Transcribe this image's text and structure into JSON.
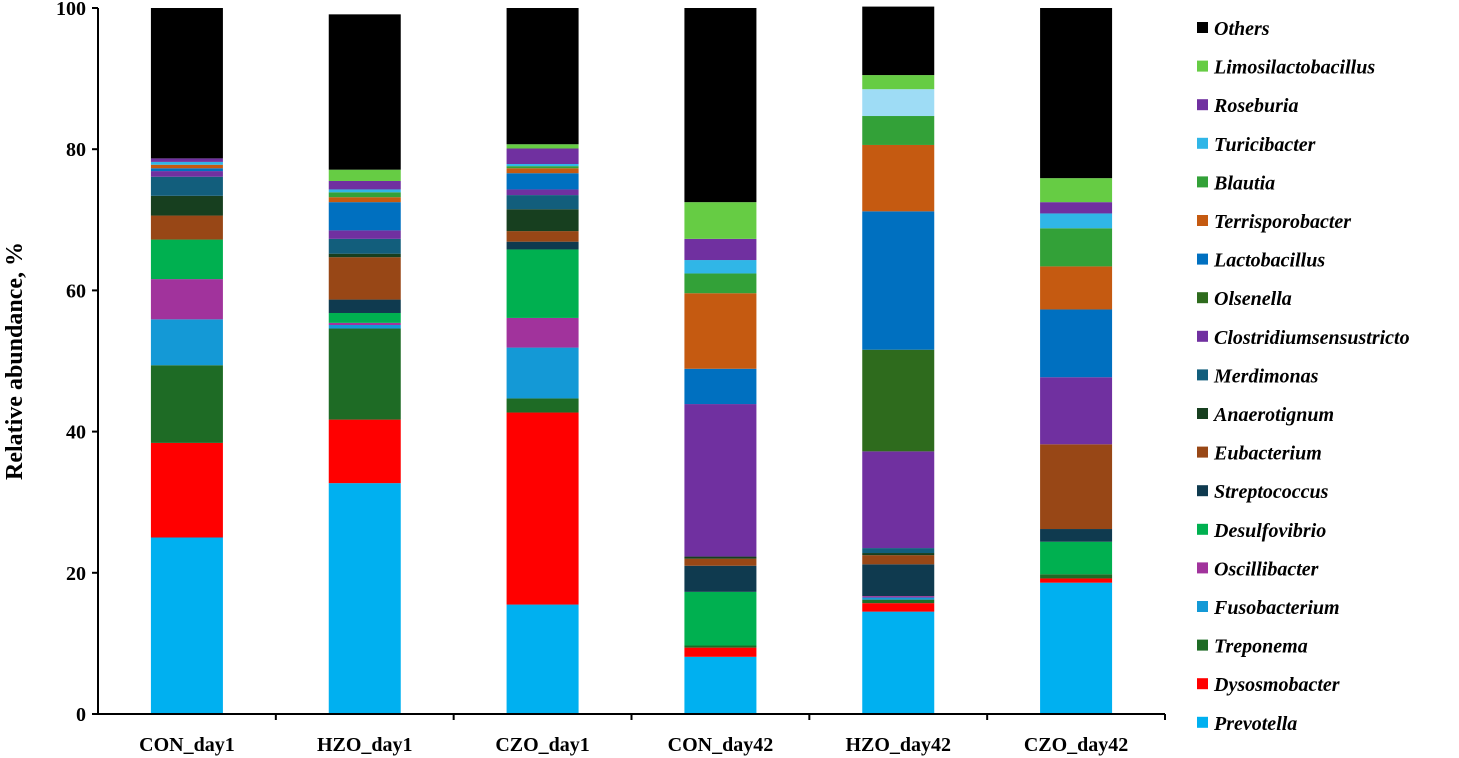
{
  "chart_data": {
    "type": "bar",
    "stacked": true,
    "title": "",
    "xlabel": "",
    "ylabel": "Relative abundance, %",
    "ylim": [
      0,
      100
    ],
    "yticks": [
      "0",
      "20",
      "40",
      "60",
      "80",
      "100"
    ],
    "grid": false,
    "legend_position": "right",
    "categories": [
      "CON_day1",
      "HZO_day1",
      "CZO_day1",
      "CON_day42",
      "HZO_day42",
      "CZO_day42"
    ],
    "series": [
      {
        "name": "Prevotella",
        "color": "#00B0F0",
        "values": [
          25.0,
          32.7,
          15.5,
          8.1,
          14.5,
          18.6
        ]
      },
      {
        "name": "Dysosmobacter",
        "color": "#FF0000",
        "values": [
          13.4,
          9.0,
          27.2,
          1.3,
          1.2,
          0.6
        ]
      },
      {
        "name": "Treponema",
        "color": "#1E6B25",
        "values": [
          11.0,
          12.9,
          2.0,
          0.3,
          0.5,
          0.6
        ]
      },
      {
        "name": "Fusobacterium",
        "color": "#1499D6",
        "values": [
          6.5,
          0.5,
          7.2,
          0.0,
          0.3,
          0.0
        ]
      },
      {
        "name": "Oscillibacter",
        "color": "#A1339C",
        "values": [
          5.7,
          0.3,
          4.2,
          0.0,
          0.2,
          0.0
        ]
      },
      {
        "name": "Desulfovibrio",
        "color": "#00B050",
        "values": [
          5.6,
          1.4,
          9.7,
          7.6,
          0.0,
          4.6
        ]
      },
      {
        "name": "Streptococcus",
        "color": "#0F3A4F",
        "values": [
          0.0,
          1.9,
          1.1,
          3.7,
          4.5,
          1.8
        ]
      },
      {
        "name": "Eubacterium",
        "color": "#984716",
        "values": [
          3.4,
          6.0,
          1.5,
          1.0,
          1.3,
          12.0
        ]
      },
      {
        "name": "Anaerotignum",
        "color": "#173F1F",
        "values": [
          2.8,
          0.5,
          3.1,
          0.3,
          0.3,
          0.0
        ]
      },
      {
        "name": "Merdimonas",
        "color": "#125E7C",
        "values": [
          2.7,
          2.1,
          2.0,
          0.0,
          0.7,
          0.0
        ]
      },
      {
        "name": "Clostridiumsensustricto",
        "color": "#7030A0",
        "values": [
          0.8,
          1.2,
          0.8,
          21.6,
          13.7,
          9.5
        ]
      },
      {
        "name": "Olsenella",
        "color": "#2E6B1D",
        "values": [
          0.0,
          0.0,
          0.0,
          0.0,
          14.4,
          0.0
        ]
      },
      {
        "name": "Lactobacillus",
        "color": "#0070C0",
        "values": [
          0.4,
          4.0,
          2.3,
          5.0,
          19.6,
          9.6
        ]
      },
      {
        "name": "Terrisporobacter",
        "color": "#C55A11",
        "values": [
          0.5,
          0.7,
          0.7,
          10.7,
          9.4,
          6.1
        ]
      },
      {
        "name": "Blautia",
        "color": "#33A138",
        "values": [
          0.0,
          0.7,
          0.3,
          2.8,
          4.1,
          5.4
        ]
      },
      {
        "name": "Turicibacter",
        "color": "#30B6E7",
        "values": [
          0.4,
          0.4,
          0.3,
          1.9,
          3.8,
          2.1
        ]
      },
      {
        "name": "Roseburia",
        "color": "#7030A0",
        "values": [
          0.5,
          1.2,
          2.2,
          3.0,
          0.0,
          1.6
        ]
      },
      {
        "name": "Limosilactobacillus",
        "color": "#66CC44",
        "values": [
          0.0,
          1.6,
          0.6,
          5.2,
          2.0,
          3.4
        ]
      },
      {
        "name": "Others",
        "color": "#000000",
        "values": [
          21.3,
          22.0,
          19.3,
          27.5,
          9.7,
          24.1
        ]
      }
    ],
    "hzo_day42_extra_band": {
      "color": "#9EDCF5",
      "note": ""
    },
    "legend_order": [
      "Others",
      "Limosilactobacillus",
      "Roseburia",
      "Turicibacter",
      "Blautia",
      "Terrisporobacter",
      "Lactobacillus",
      "Olsenella",
      "Clostridiumsensustricto",
      "Merdimonas",
      "Anaerotignum",
      "Eubacterium",
      "Streptococcus",
      "Desulfovibrio",
      "Oscillibacter",
      "Fusobacterium",
      "Treponema",
      "Dysosmobacter",
      "Prevotella"
    ]
  }
}
